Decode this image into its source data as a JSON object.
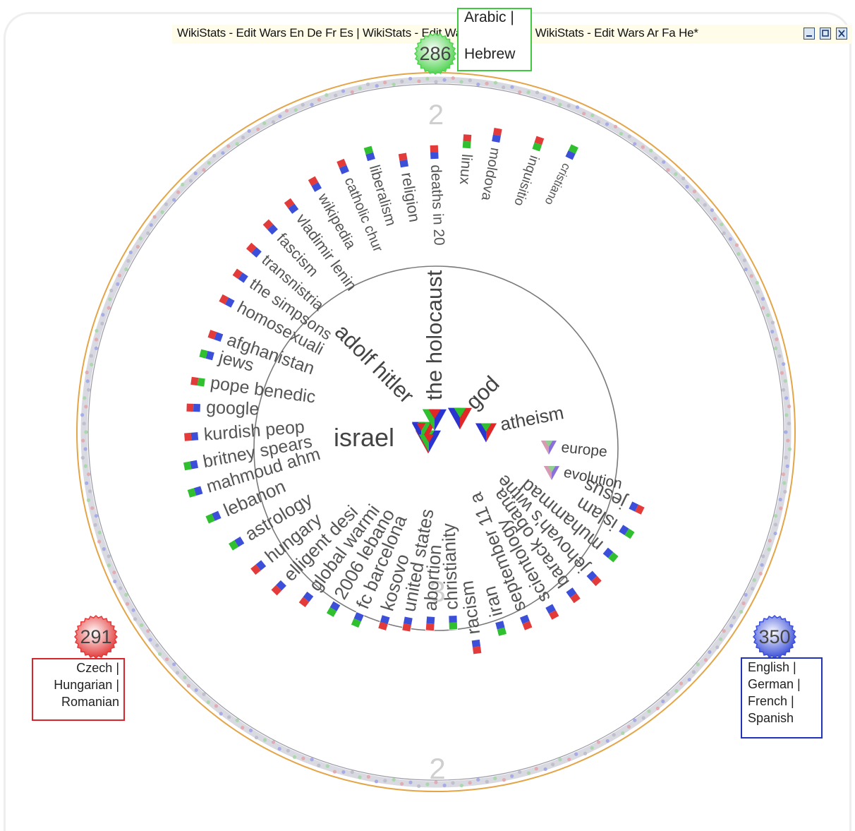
{
  "window": {
    "title": "WikiStats - Edit Wars En De Fr Es | WikiStats - Edit Wars Cz Hu Ro | WikiStats - Edit Wars Ar Fa He*"
  },
  "groups": [
    {
      "id": "czech-hungarian-romanian",
      "count": "291",
      "color": "#e33a3a",
      "lines": [
        "Czech |",
        "Hungarian |",
        "Romanian"
      ]
    },
    {
      "id": "english-german-french-spanish",
      "count": "350",
      "color": "#3b4fd8",
      "lines": [
        "English |",
        "German |",
        "French |",
        "Spanish"
      ]
    },
    {
      "id": "arabic-hebrew",
      "count": "286",
      "color": "#4fd34f",
      "lines": [
        "Arabic |",
        "Hebrew"
      ]
    }
  ],
  "ring_labels": {
    "inner": "3",
    "outer_top": "2",
    "outer_bottom": "2"
  },
  "inner_topics": [
    {
      "label": "israel",
      "colors": [
        "#2a35d0",
        "#e02828",
        "#2fbf2f"
      ]
    },
    {
      "label": "adolf hitler",
      "colors": [
        "#e02828",
        "#2a35d0",
        "#2fbf2f"
      ]
    },
    {
      "label": "the holocaust",
      "colors": [
        "#2a35d0",
        "#2fbf2f",
        "#e02828"
      ]
    },
    {
      "label": "god",
      "colors": [
        "#e02828",
        "#2a35d0",
        "#2fbf2f"
      ]
    },
    {
      "label": "atheism",
      "colors": [
        "#e02828",
        "#2a35d0",
        "#2fbf2f"
      ]
    },
    {
      "label": "europe",
      "colors": [
        "#8a70d8",
        "#d89ab0",
        "#8fd08f"
      ]
    },
    {
      "label": "evolution",
      "colors": [
        "#8a70d8",
        "#d89ab0",
        "#8fd08f"
      ]
    }
  ],
  "outer_topics": [
    {
      "label": "cristiano",
      "pair": [
        "#2fbf2f",
        "#3b4fd8"
      ]
    },
    {
      "label": "inquisitio",
      "pair": [
        "#e33a3a",
        "#2fbf2f"
      ]
    },
    {
      "label": "moldova",
      "pair": [
        "#e33a3a",
        "#3b4fd8"
      ]
    },
    {
      "label": "linux",
      "pair": [
        "#e33a3a",
        "#2fbf2f"
      ]
    },
    {
      "label": "deaths in 20",
      "pair": [
        "#e33a3a",
        "#3b4fd8"
      ]
    },
    {
      "label": "religion",
      "pair": [
        "#e33a3a",
        "#3b4fd8"
      ]
    },
    {
      "label": "liberalism",
      "pair": [
        "#2fbf2f",
        "#3b4fd8"
      ]
    },
    {
      "label": "catholic chur",
      "pair": [
        "#e33a3a",
        "#3b4fd8"
      ]
    },
    {
      "label": "wikipedia",
      "pair": [
        "#e33a3a",
        "#3b4fd8"
      ]
    },
    {
      "label": "vladimir lenin",
      "pair": [
        "#e33a3a",
        "#3b4fd8"
      ]
    },
    {
      "label": "fascism",
      "pair": [
        "#e33a3a",
        "#3b4fd8"
      ]
    },
    {
      "label": "transnistria",
      "pair": [
        "#e33a3a",
        "#3b4fd8"
      ]
    },
    {
      "label": "the simpsons",
      "pair": [
        "#e33a3a",
        "#3b4fd8"
      ]
    },
    {
      "label": "homosexuali",
      "pair": [
        "#e33a3a",
        "#3b4fd8"
      ]
    },
    {
      "label": "afghanistan",
      "pair": [
        "#e33a3a",
        "#3b4fd8"
      ]
    },
    {
      "label": "jews",
      "pair": [
        "#2fbf2f",
        "#3b4fd8"
      ]
    },
    {
      "label": "pope benedic",
      "pair": [
        "#e33a3a",
        "#2fbf2f"
      ]
    },
    {
      "label": "google",
      "pair": [
        "#e33a3a",
        "#3b4fd8"
      ]
    },
    {
      "label": "kurdish peop",
      "pair": [
        "#e33a3a",
        "#3b4fd8"
      ]
    },
    {
      "label": "britney spears",
      "pair": [
        "#2fbf2f",
        "#3b4fd8"
      ]
    },
    {
      "label": "mahmoud ahm",
      "pair": [
        "#2fbf2f",
        "#3b4fd8"
      ]
    },
    {
      "label": "lebanon",
      "pair": [
        "#2fbf2f",
        "#3b4fd8"
      ]
    },
    {
      "label": "astrology",
      "pair": [
        "#2fbf2f",
        "#3b4fd8"
      ]
    },
    {
      "label": "hungary",
      "pair": [
        "#e33a3a",
        "#3b4fd8"
      ]
    },
    {
      "label": "elligent desi",
      "pair": [
        "#e33a3a",
        "#3b4fd8"
      ]
    },
    {
      "label": "global warmi",
      "pair": [
        "#e33a3a",
        "#3b4fd8"
      ]
    },
    {
      "label": "2006 lebano",
      "pair": [
        "#2fbf2f",
        "#3b4fd8"
      ]
    },
    {
      "label": "fc barcelona",
      "pair": [
        "#2fbf2f",
        "#3b4fd8"
      ]
    },
    {
      "label": "kosovo",
      "pair": [
        "#e33a3a",
        "#3b4fd8"
      ]
    },
    {
      "label": "united states",
      "pair": [
        "#e33a3a",
        "#3b4fd8"
      ]
    },
    {
      "label": "abortion",
      "pair": [
        "#e33a3a",
        "#3b4fd8"
      ]
    },
    {
      "label": "christianity",
      "pair": [
        "#2fbf2f",
        "#3b4fd8"
      ]
    },
    {
      "label": "racism",
      "pair": [
        "#e33a3a",
        "#3b4fd8"
      ]
    },
    {
      "label": "iran",
      "pair": [
        "#2fbf2f",
        "#3b4fd8"
      ]
    },
    {
      "label": "september 11 a",
      "pair": [
        "#e33a3a",
        "#3b4fd8"
      ]
    },
    {
      "label": "scientology",
      "pair": [
        "#e33a3a",
        "#3b4fd8"
      ]
    },
    {
      "label": "barack obama",
      "pair": [
        "#e33a3a",
        "#3b4fd8"
      ]
    },
    {
      "label": "jehovah's witne",
      "pair": [
        "#e33a3a",
        "#3b4fd8"
      ]
    },
    {
      "label": "muhammad",
      "pair": [
        "#2fbf2f",
        "#3b4fd8"
      ]
    },
    {
      "label": "islam",
      "pair": [
        "#2fbf2f",
        "#3b4fd8"
      ]
    },
    {
      "label": "jesus",
      "pair": [
        "#e33a3a",
        "#3b4fd8"
      ]
    }
  ]
}
